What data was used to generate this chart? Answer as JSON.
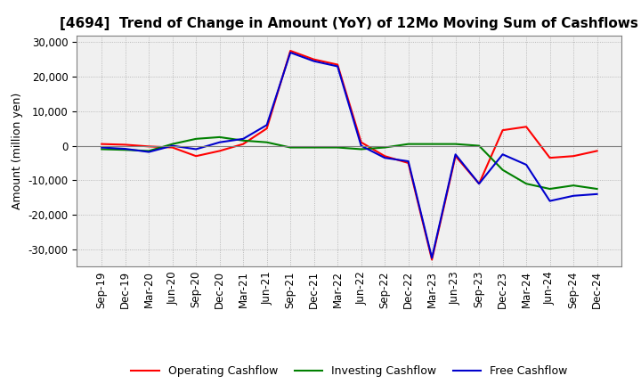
{
  "title": "[4694]  Trend of Change in Amount (YoY) of 12Mo Moving Sum of Cashflows",
  "ylabel": "Amount (million yen)",
  "ylim": [
    -35000,
    32000
  ],
  "yticks": [
    -30000,
    -20000,
    -10000,
    0,
    10000,
    20000,
    30000
  ],
  "x_labels": [
    "Sep-19",
    "Dec-19",
    "Mar-20",
    "Jun-20",
    "Sep-20",
    "Dec-20",
    "Mar-21",
    "Jun-21",
    "Sep-21",
    "Dec-21",
    "Mar-22",
    "Jun-22",
    "Sep-22",
    "Dec-22",
    "Mar-23",
    "Jun-23",
    "Sep-23",
    "Dec-23",
    "Mar-24",
    "Jun-24",
    "Sep-24",
    "Dec-24"
  ],
  "operating": [
    500,
    300,
    -200,
    -500,
    -3000,
    -1500,
    500,
    5000,
    27500,
    25000,
    23500,
    1000,
    -3000,
    -5000,
    -33000,
    -3000,
    -11000,
    4500,
    5500,
    -3500,
    -3000,
    -1500
  ],
  "investing": [
    -1000,
    -1200,
    -1500,
    500,
    2000,
    2500,
    1500,
    1000,
    -500,
    -500,
    -500,
    -1000,
    -500,
    500,
    500,
    500,
    0,
    -7000,
    -11000,
    -12500,
    -11500,
    -12500
  ],
  "free": [
    -500,
    -900,
    -1800,
    0,
    -1000,
    1000,
    2000,
    6000,
    27000,
    24500,
    23000,
    0,
    -3500,
    -4500,
    -32500,
    -2500,
    -11000,
    -2500,
    -5500,
    -16000,
    -14500,
    -14000
  ],
  "operating_color": "#ff0000",
  "investing_color": "#008000",
  "free_color": "#0000cd",
  "background_color": "#ffffff",
  "plot_bg_color": "#f0f0f0",
  "grid_color": "#aaaaaa",
  "title_fontsize": 11,
  "label_fontsize": 9,
  "tick_fontsize": 8.5
}
